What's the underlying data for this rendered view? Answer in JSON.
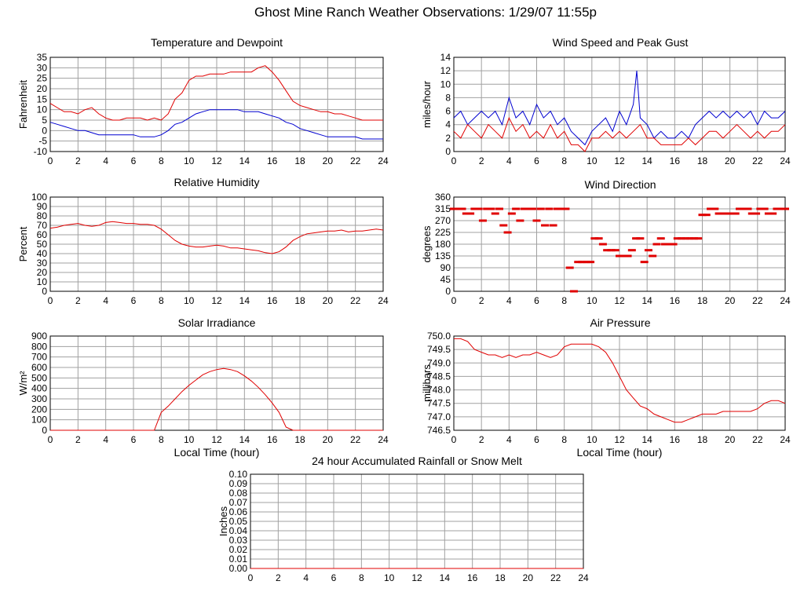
{
  "page": {
    "title": "Ghost Mine Ranch Weather Observations: 1/29/07 11:55p"
  },
  "colors": {
    "red": "#e00000",
    "blue": "#0000d0",
    "grid": "#a0a0a0",
    "axis": "#000000"
  },
  "chart_data": [
    {
      "id": "temp",
      "type": "line",
      "title": "Temperature and Dewpoint",
      "xlabel": "",
      "ylabel": "Fahrenheit",
      "xlim": [
        0,
        24
      ],
      "ylim": [
        -10,
        35
      ],
      "xticks": [
        0,
        2,
        4,
        6,
        8,
        10,
        12,
        14,
        16,
        18,
        20,
        22,
        24
      ],
      "yticks": [
        -10,
        -5,
        0,
        5,
        10,
        15,
        20,
        25,
        30,
        35
      ],
      "ytick_labels": [
        "-10",
        "-5",
        "0",
        "5",
        "10",
        "15",
        "20",
        "25",
        "30",
        "35"
      ],
      "series": [
        {
          "color": "#e00000",
          "x": [
            0,
            0.5,
            1,
            1.5,
            2,
            2.5,
            3,
            3.5,
            4,
            4.5,
            5,
            5.5,
            6,
            6.5,
            7,
            7.5,
            8,
            8.5,
            9,
            9.5,
            10,
            10.5,
            11,
            11.5,
            12,
            12.5,
            13,
            13.5,
            14,
            14.5,
            15,
            15.5,
            16,
            16.5,
            17,
            17.5,
            18,
            18.5,
            19,
            19.5,
            20,
            20.5,
            21,
            21.5,
            22,
            22.5,
            23,
            23.5,
            24
          ],
          "y": [
            13,
            11,
            9,
            9,
            8,
            10,
            11,
            8,
            6,
            5,
            5,
            6,
            6,
            6,
            5,
            6,
            5,
            8,
            15,
            18,
            24,
            26,
            26,
            27,
            27,
            27,
            28,
            28,
            28,
            28,
            30,
            31,
            28,
            24,
            19,
            14,
            12,
            11,
            10,
            9,
            9,
            8,
            8,
            7,
            6,
            5,
            5,
            5,
            5
          ]
        },
        {
          "color": "#0000d0",
          "x": [
            0,
            0.5,
            1,
            1.5,
            2,
            2.5,
            3,
            3.5,
            4,
            4.5,
            5,
            5.5,
            6,
            6.5,
            7,
            7.5,
            8,
            8.5,
            9,
            9.5,
            10,
            10.5,
            11,
            11.5,
            12,
            12.5,
            13,
            13.5,
            14,
            14.5,
            15,
            15.5,
            16,
            16.5,
            17,
            17.5,
            18,
            18.5,
            19,
            19.5,
            20,
            20.5,
            21,
            21.5,
            22,
            22.5,
            23,
            23.5,
            24
          ],
          "y": [
            4,
            3,
            2,
            1,
            0,
            0,
            -1,
            -2,
            -2,
            -2,
            -2,
            -2,
            -2,
            -3,
            -3,
            -3,
            -2,
            0,
            3,
            4,
            6,
            8,
            9,
            10,
            10,
            10,
            10,
            10,
            9,
            9,
            9,
            8,
            7,
            6,
            4,
            3,
            1,
            0,
            -1,
            -2,
            -3,
            -3,
            -3,
            -3,
            -3,
            -4,
            -4,
            -4,
            -4
          ]
        }
      ]
    },
    {
      "id": "wind",
      "type": "line",
      "title": "Wind Speed and Peak Gust",
      "xlabel": "",
      "ylabel": "miles/hour",
      "xlim": [
        0,
        24
      ],
      "ylim": [
        0,
        14
      ],
      "xticks": [
        0,
        2,
        4,
        6,
        8,
        10,
        12,
        14,
        16,
        18,
        20,
        22,
        24
      ],
      "yticks": [
        0,
        2,
        4,
        6,
        8,
        10,
        12,
        14
      ],
      "ytick_labels": [
        "0",
        "2",
        "4",
        "6",
        "8",
        "10",
        "12",
        "14"
      ],
      "series": [
        {
          "color": "#0000d0",
          "x": [
            0,
            0.5,
            1,
            1.5,
            2,
            2.5,
            3,
            3.5,
            4,
            4.5,
            5,
            5.5,
            6,
            6.5,
            7,
            7.5,
            8,
            8.5,
            9,
            9.5,
            10,
            10.5,
            11,
            11.5,
            12,
            12.5,
            13,
            13.25,
            13.5,
            14,
            14.5,
            15,
            15.5,
            16,
            16.5,
            17,
            17.5,
            18,
            18.5,
            19,
            19.5,
            20,
            20.5,
            21,
            21.5,
            22,
            22.5,
            23,
            23.5,
            24
          ],
          "y": [
            5,
            6,
            4,
            5,
            6,
            5,
            6,
            4,
            8,
            5,
            6,
            4,
            7,
            5,
            6,
            4,
            5,
            3,
            2,
            1,
            3,
            4,
            5,
            3,
            6,
            4,
            7,
            12,
            5,
            4,
            2,
            3,
            2,
            2,
            3,
            2,
            4,
            5,
            6,
            5,
            6,
            5,
            6,
            5,
            6,
            4,
            6,
            5,
            5,
            6
          ]
        },
        {
          "color": "#e00000",
          "x": [
            0,
            0.5,
            1,
            1.5,
            2,
            2.5,
            3,
            3.5,
            4,
            4.5,
            5,
            5.5,
            6,
            6.5,
            7,
            7.5,
            8,
            8.5,
            9,
            9.5,
            10,
            10.5,
            11,
            11.5,
            12,
            12.5,
            13,
            13.5,
            14,
            14.5,
            15,
            15.5,
            16,
            16.5,
            17,
            17.5,
            18,
            18.5,
            19,
            19.5,
            20,
            20.5,
            21,
            21.5,
            22,
            22.5,
            23,
            23.5,
            24
          ],
          "y": [
            3,
            2,
            4,
            3,
            2,
            4,
            3,
            2,
            5,
            3,
            4,
            2,
            3,
            2,
            4,
            2,
            3,
            1,
            1,
            0,
            2,
            2,
            3,
            2,
            3,
            2,
            3,
            4,
            2,
            2,
            1,
            1,
            1,
            1,
            2,
            1,
            2,
            3,
            3,
            2,
            3,
            4,
            3,
            2,
            3,
            2,
            3,
            3,
            4
          ]
        }
      ]
    },
    {
      "id": "rh",
      "type": "line",
      "title": "Relative Humidity",
      "xlabel": "",
      "ylabel": "Percent",
      "xlim": [
        0,
        24
      ],
      "ylim": [
        0,
        100
      ],
      "xticks": [
        0,
        2,
        4,
        6,
        8,
        10,
        12,
        14,
        16,
        18,
        20,
        22,
        24
      ],
      "yticks": [
        0,
        10,
        20,
        30,
        40,
        50,
        60,
        70,
        80,
        90,
        100
      ],
      "ytick_labels": [
        "0",
        "10",
        "20",
        "30",
        "40",
        "50",
        "60",
        "70",
        "80",
        "90",
        "100"
      ],
      "series": [
        {
          "color": "#e00000",
          "x": [
            0,
            0.5,
            1,
            1.5,
            2,
            2.5,
            3,
            3.5,
            4,
            4.5,
            5,
            5.5,
            6,
            6.5,
            7,
            7.5,
            8,
            8.5,
            9,
            9.5,
            10,
            10.5,
            11,
            11.5,
            12,
            12.5,
            13,
            13.5,
            14,
            14.5,
            15,
            15.5,
            16,
            16.5,
            17,
            17.5,
            18,
            18.5,
            19,
            19.5,
            20,
            20.5,
            21,
            21.5,
            22,
            22.5,
            23,
            23.5,
            24
          ],
          "y": [
            67,
            68,
            70,
            71,
            72,
            70,
            69,
            70,
            73,
            74,
            73,
            72,
            72,
            71,
            71,
            70,
            66,
            60,
            54,
            50,
            48,
            47,
            47,
            48,
            49,
            48,
            46,
            46,
            45,
            44,
            43,
            41,
            40,
            42,
            47,
            54,
            58,
            61,
            62,
            63,
            64,
            64,
            65,
            63,
            64,
            64,
            65,
            66,
            65
          ]
        }
      ]
    },
    {
      "id": "wdir",
      "type": "scatter",
      "title": "Wind Direction",
      "xlabel": "",
      "ylabel": "degrees",
      "xlim": [
        0,
        24
      ],
      "ylim": [
        0,
        360
      ],
      "xticks": [
        0,
        2,
        4,
        6,
        8,
        10,
        12,
        14,
        16,
        18,
        20,
        22,
        24
      ],
      "yticks": [
        0,
        45,
        90,
        135,
        180,
        225,
        270,
        315,
        360
      ],
      "ytick_labels": [
        "0",
        "45",
        "90",
        "135",
        "180",
        "225",
        "270",
        "315",
        "360"
      ],
      "series": [
        {
          "color": "#e00000",
          "x": [
            0,
            0.3,
            0.6,
            0.9,
            1.2,
            1.5,
            1.8,
            2.1,
            2.4,
            2.7,
            3.0,
            3.3,
            3.6,
            3.9,
            4.2,
            4.5,
            4.8,
            5.1,
            5.4,
            5.7,
            6.0,
            6.3,
            6.6,
            6.9,
            7.2,
            7.5,
            7.8,
            8.1,
            8.4,
            8.7,
            9.0,
            9.3,
            9.6,
            9.9,
            10.2,
            10.5,
            10.8,
            11.1,
            11.4,
            11.7,
            12.0,
            12.3,
            12.6,
            12.9,
            13.2,
            13.5,
            13.8,
            14.1,
            14.4,
            14.7,
            15.0,
            15.3,
            15.6,
            15.9,
            16.2,
            16.5,
            16.8,
            17.1,
            17.4,
            17.7,
            18.0,
            18.3,
            18.6,
            18.9,
            19.2,
            19.5,
            19.8,
            20.1,
            20.4,
            20.7,
            21.0,
            21.3,
            21.6,
            21.9,
            22.2,
            22.5,
            22.8,
            23.1,
            23.4,
            23.7,
            24.0
          ],
          "y": [
            315,
            315,
            315,
            297,
            297,
            315,
            315,
            270,
            315,
            315,
            297,
            315,
            252,
            225,
            297,
            315,
            270,
            315,
            315,
            315,
            270,
            315,
            252,
            315,
            252,
            315,
            315,
            315,
            90,
            0,
            112,
            112,
            112,
            112,
            202,
            202,
            180,
            157,
            157,
            157,
            135,
            135,
            135,
            157,
            202,
            202,
            112,
            157,
            135,
            180,
            202,
            180,
            180,
            180,
            202,
            202,
            202,
            202,
            202,
            202,
            292,
            292,
            315,
            315,
            297,
            297,
            297,
            297,
            297,
            315,
            315,
            315,
            297,
            297,
            315,
            315,
            297,
            297,
            315,
            315,
            315
          ]
        }
      ]
    },
    {
      "id": "solar",
      "type": "line",
      "title": "Solar Irradiance",
      "xlabel": "Local Time (hour)",
      "ylabel": "W/m²",
      "xlim": [
        0,
        24
      ],
      "ylim": [
        0,
        900
      ],
      "xticks": [
        0,
        2,
        4,
        6,
        8,
        10,
        12,
        14,
        16,
        18,
        20,
        22,
        24
      ],
      "yticks": [
        0,
        100,
        200,
        300,
        400,
        500,
        600,
        700,
        800,
        900
      ],
      "ytick_labels": [
        "0",
        "100",
        "200",
        "300",
        "400",
        "500",
        "600",
        "700",
        "800",
        "900"
      ],
      "series": [
        {
          "color": "#e00000",
          "x": [
            0,
            7.5,
            8,
            8.5,
            9,
            9.5,
            10,
            10.5,
            11,
            11.5,
            12,
            12.5,
            13,
            13.5,
            14,
            14.5,
            15,
            15.5,
            16,
            16.5,
            17,
            17.5,
            24
          ],
          "y": [
            0,
            0,
            170,
            230,
            300,
            370,
            430,
            480,
            530,
            560,
            580,
            590,
            580,
            560,
            520,
            470,
            410,
            340,
            260,
            170,
            30,
            0,
            0
          ]
        }
      ]
    },
    {
      "id": "press",
      "type": "line",
      "title": "Air Pressure",
      "xlabel": "Local Time (hour)",
      "ylabel": "millibars",
      "xlim": [
        0,
        24
      ],
      "ylim": [
        746.5,
        750.0
      ],
      "xticks": [
        0,
        2,
        4,
        6,
        8,
        10,
        12,
        14,
        16,
        18,
        20,
        22,
        24
      ],
      "yticks": [
        746.5,
        747.0,
        747.5,
        748.0,
        748.5,
        749.0,
        749.5,
        750.0
      ],
      "ytick_labels": [
        "746.5",
        "747.0",
        "747.5",
        "748.0",
        "748.5",
        "749.0",
        "749.5",
        "750.0"
      ],
      "series": [
        {
          "color": "#e00000",
          "x": [
            0,
            0.5,
            1,
            1.5,
            2,
            2.5,
            3,
            3.5,
            4,
            4.5,
            5,
            5.5,
            6,
            6.5,
            7,
            7.5,
            8,
            8.5,
            9,
            9.5,
            10,
            10.5,
            11,
            11.5,
            12,
            12.5,
            13,
            13.5,
            14,
            14.5,
            15,
            15.5,
            16,
            16.5,
            17,
            17.5,
            18,
            18.5,
            19,
            19.5,
            20,
            20.5,
            21,
            21.5,
            22,
            22.5,
            23,
            23.5,
            24
          ],
          "y": [
            749.9,
            749.9,
            749.8,
            749.5,
            749.4,
            749.3,
            749.3,
            749.2,
            749.3,
            749.2,
            749.3,
            749.3,
            749.4,
            749.3,
            749.2,
            749.3,
            749.6,
            749.7,
            749.7,
            749.7,
            749.7,
            749.6,
            749.4,
            749.0,
            748.5,
            748.0,
            747.7,
            747.4,
            747.3,
            747.1,
            747.0,
            746.9,
            746.8,
            746.8,
            746.9,
            747.0,
            747.1,
            747.1,
            747.1,
            747.2,
            747.2,
            747.2,
            747.2,
            747.2,
            747.3,
            747.5,
            747.6,
            747.6,
            747.5
          ]
        }
      ]
    },
    {
      "id": "rain",
      "type": "line",
      "title": "24 hour Accumulated Rainfall or Snow Melt",
      "xlabel": "",
      "ylabel": "Inches",
      "xlim": [
        0,
        24
      ],
      "ylim": [
        0,
        0.1
      ],
      "xticks": [
        0,
        2,
        4,
        6,
        8,
        10,
        12,
        14,
        16,
        18,
        20,
        22,
        24
      ],
      "yticks": [
        0,
        0.01,
        0.02,
        0.03,
        0.04,
        0.05,
        0.06,
        0.07,
        0.08,
        0.09,
        0.1
      ],
      "ytick_labels": [
        "0.00",
        "0.01",
        "0.02",
        "0.03",
        "0.04",
        "0.05",
        "0.06",
        "0.07",
        "0.08",
        "0.09",
        "0.10"
      ],
      "series": [
        {
          "color": "#e00000",
          "x": [
            0,
            24
          ],
          "y": [
            0,
            0
          ]
        }
      ]
    }
  ]
}
